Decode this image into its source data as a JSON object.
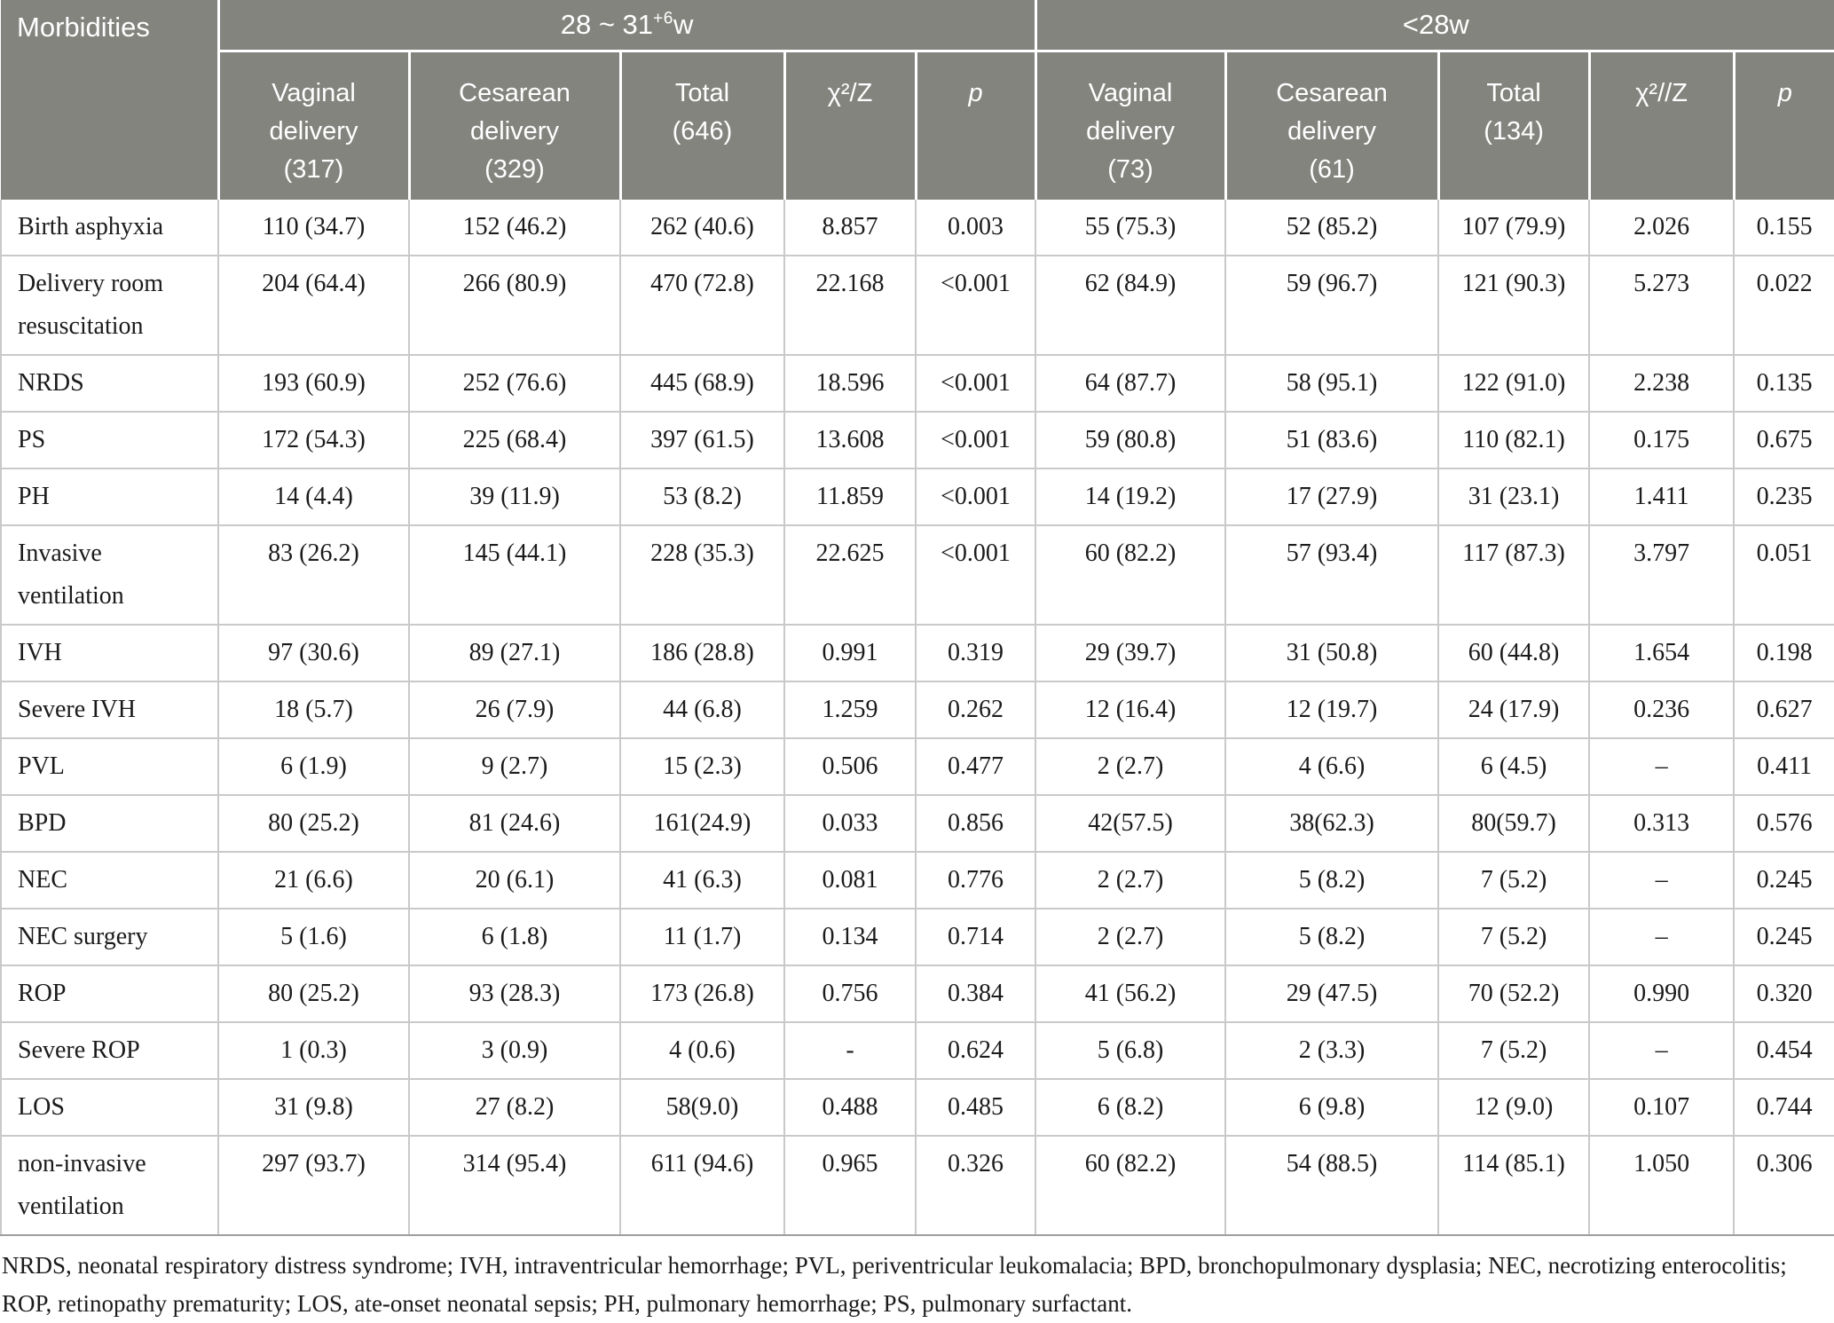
{
  "colors": {
    "header_bg": "#84847f",
    "header_text": "#ffffff",
    "body_text": "#1b1b1b",
    "grid_line": "#c9c9c9",
    "table_bottom_line": "#9e9e9e"
  },
  "header": {
    "corner": "Morbidities",
    "group1": {
      "main": "28 ~ 31",
      "sup": "+6",
      "tail": "w"
    },
    "group2": {
      "main": "<28w",
      "sup": "",
      "tail": ""
    },
    "cols1": [
      "Vaginal\ndelivery\n(317)",
      "Cesarean\ndelivery\n(329)",
      "Total\n(646)",
      "χ²/Z",
      "p"
    ],
    "cols2": [
      "Vaginal\ndelivery\n(73)",
      "Cesarean\ndelivery\n(61)",
      "Total\n(134)",
      "χ²//Z",
      "p"
    ]
  },
  "rows": [
    {
      "label": "Birth asphyxia",
      "values": [
        "110 (34.7)",
        "152 (46.2)",
        "262 (40.6)",
        "8.857",
        "0.003",
        "55 (75.3)",
        "52 (85.2)",
        "107 (79.9)",
        "2.026",
        "0.155"
      ]
    },
    {
      "label": "Delivery room resuscitation",
      "values": [
        "204 (64.4)",
        "266 (80.9)",
        "470 (72.8)",
        "22.168",
        "<0.001",
        "62 (84.9)",
        "59 (96.7)",
        "121 (90.3)",
        "5.273",
        "0.022"
      ]
    },
    {
      "label": "NRDS",
      "values": [
        "193 (60.9)",
        "252 (76.6)",
        "445 (68.9)",
        "18.596",
        "<0.001",
        "64 (87.7)",
        "58 (95.1)",
        "122 (91.0)",
        "2.238",
        "0.135"
      ]
    },
    {
      "label": "PS",
      "values": [
        "172 (54.3)",
        "225 (68.4)",
        "397 (61.5)",
        "13.608",
        "<0.001",
        "59 (80.8)",
        "51 (83.6)",
        "110 (82.1)",
        "0.175",
        "0.675"
      ]
    },
    {
      "label": "PH",
      "values": [
        "14 (4.4)",
        "39 (11.9)",
        "53 (8.2)",
        "11.859",
        "<0.001",
        "14 (19.2)",
        "17 (27.9)",
        "31 (23.1)",
        "1.411",
        "0.235"
      ]
    },
    {
      "label": "Invasive ventilation",
      "values": [
        "83 (26.2)",
        "145 (44.1)",
        "228 (35.3)",
        "22.625",
        "<0.001",
        "60 (82.2)",
        "57 (93.4)",
        "117 (87.3)",
        "3.797",
        "0.051"
      ]
    },
    {
      "label": "IVH",
      "values": [
        "97 (30.6)",
        "89 (27.1)",
        "186 (28.8)",
        "0.991",
        "0.319",
        "29 (39.7)",
        "31 (50.8)",
        "60 (44.8)",
        "1.654",
        "0.198"
      ]
    },
    {
      "label": "Severe IVH",
      "values": [
        "18 (5.7)",
        "26 (7.9)",
        "44 (6.8)",
        "1.259",
        "0.262",
        "12 (16.4)",
        "12 (19.7)",
        "24 (17.9)",
        "0.236",
        "0.627"
      ]
    },
    {
      "label": "PVL",
      "values": [
        "6 (1.9)",
        "9 (2.7)",
        "15 (2.3)",
        "0.506",
        "0.477",
        "2 (2.7)",
        "4 (6.6)",
        "6 (4.5)",
        "–",
        "0.411"
      ]
    },
    {
      "label": "BPD",
      "values": [
        "80 (25.2)",
        "81 (24.6)",
        "161(24.9)",
        "0.033",
        "0.856",
        "42(57.5)",
        "38(62.3)",
        "80(59.7)",
        "0.313",
        "0.576"
      ]
    },
    {
      "label": "NEC",
      "values": [
        "21 (6.6)",
        "20 (6.1)",
        "41 (6.3)",
        "0.081",
        "0.776",
        "2 (2.7)",
        "5 (8.2)",
        "7 (5.2)",
        "–",
        "0.245"
      ]
    },
    {
      "label": "NEC surgery",
      "values": [
        "5 (1.6)",
        "6 (1.8)",
        "11 (1.7)",
        "0.134",
        "0.714",
        "2 (2.7)",
        "5 (8.2)",
        "7 (5.2)",
        "–",
        "0.245"
      ]
    },
    {
      "label": "ROP",
      "values": [
        "80 (25.2)",
        "93 (28.3)",
        "173 (26.8)",
        "0.756",
        "0.384",
        "41 (56.2)",
        "29 (47.5)",
        "70 (52.2)",
        "0.990",
        "0.320"
      ]
    },
    {
      "label": "Severe ROP",
      "values": [
        "1 (0.3)",
        "3 (0.9)",
        "4 (0.6)",
        "-",
        "0.624",
        "5 (6.8)",
        "2 (3.3)",
        "7 (5.2)",
        "–",
        "0.454"
      ]
    },
    {
      "label": "LOS",
      "values": [
        "31 (9.8)",
        "27 (8.2)",
        "58(9.0)",
        "0.488",
        "0.485",
        "6 (8.2)",
        "6 (9.8)",
        "12 (9.0)",
        "0.107",
        "0.744"
      ]
    },
    {
      "label": "non-invasive ventilation",
      "values": [
        "297 (93.7)",
        "314 (95.4)",
        "611 (94.6)",
        "0.965",
        "0.326",
        "60 (82.2)",
        "54 (88.5)",
        "114 (85.1)",
        "1.050",
        "0.306"
      ]
    }
  ],
  "footnote": "NRDS, neonatal respiratory distress syndrome; IVH, intraventricular hemorrhage; PVL, periventricular leukomalacia; BPD, bronchopulmonary dysplasia; NEC, necrotizing enterocolitis; ROP, retinopathy prematurity; LOS, ate-onset neonatal sepsis; PH, pulmonary hemorrhage; PS, pulmonary surfactant."
}
